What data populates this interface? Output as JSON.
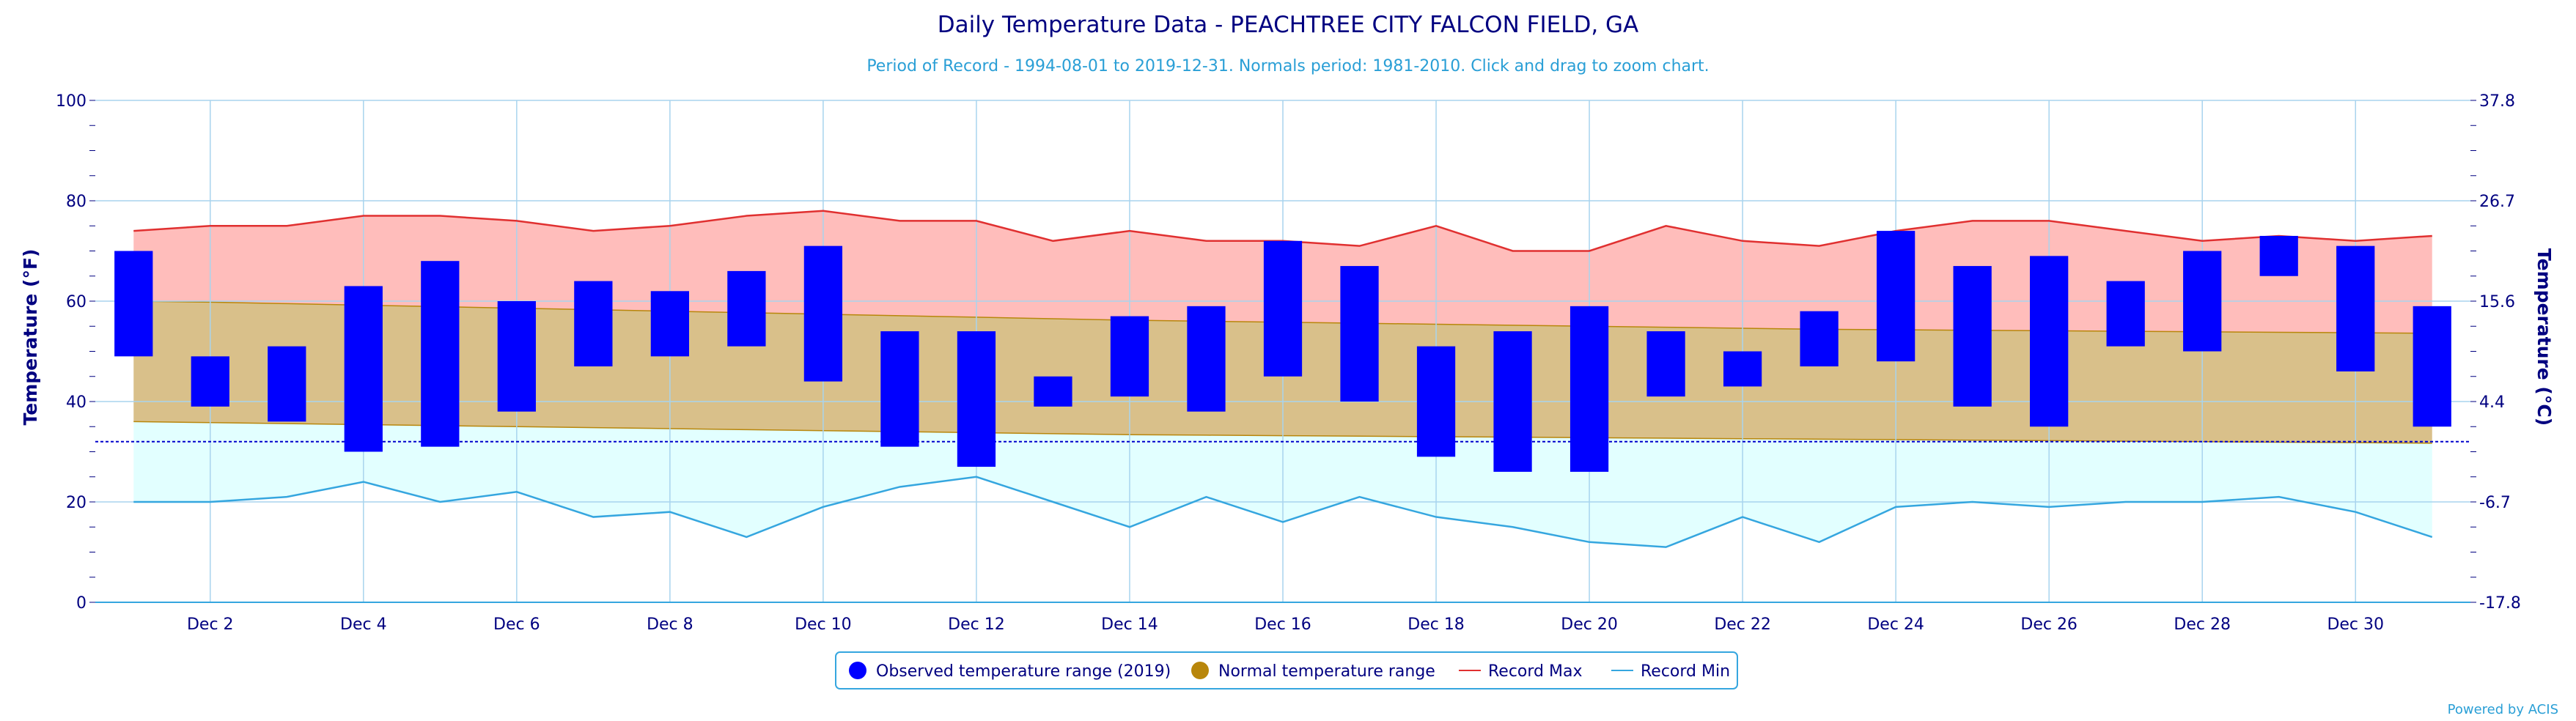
{
  "header": {
    "title": "Daily Temperature Data - PEACHTREE CITY FALCON FIELD, GA",
    "subtitle": "Period of Record - 1994-08-01 to 2019-12-31. Normals period: 1981-2010. Click and drag to zoom chart."
  },
  "credit": "Powered by ACIS",
  "colors": {
    "observed": "#0000ff",
    "normal": "#b8860b",
    "normal_fill": "#d9c08a",
    "record_max_line": "#e03030",
    "record_max_fill": "#ffbdbb",
    "record_min_line": "#35a6df",
    "record_min_fill": "#e2ffff",
    "text": "#000080",
    "grid": "#a8d4ee"
  },
  "legend": {
    "observed": "Observed temperature range (2019)",
    "normal": "Normal temperature range",
    "record_max": "Record Max",
    "record_min": "Record Min"
  },
  "chart_data": {
    "type": "bar",
    "title": "Daily Temperature Data - PEACHTREE CITY FALCON FIELD, GA",
    "ylabel_left": "Temperature (°F)",
    "ylabel_right": "Temperature (°C)",
    "ylim": [
      0,
      100
    ],
    "yticks_left": [
      "0",
      "20",
      "40",
      "60",
      "80",
      "100"
    ],
    "yticks_right": [
      "-17.8",
      "-6.7",
      "4.4",
      "15.6",
      "26.7",
      "37.8"
    ],
    "xlim": [
      0.5,
      31.5
    ],
    "x_ticks": [
      {
        "day": 2,
        "label": "Dec 2"
      },
      {
        "day": 4,
        "label": "Dec 4"
      },
      {
        "day": 6,
        "label": "Dec 6"
      },
      {
        "day": 8,
        "label": "Dec 8"
      },
      {
        "day": 10,
        "label": "Dec 10"
      },
      {
        "day": 12,
        "label": "Dec 12"
      },
      {
        "day": 14,
        "label": "Dec 14"
      },
      {
        "day": 16,
        "label": "Dec 16"
      },
      {
        "day": 18,
        "label": "Dec 18"
      },
      {
        "day": 20,
        "label": "Dec 20"
      },
      {
        "day": 22,
        "label": "Dec 22"
      },
      {
        "day": 24,
        "label": "Dec 24"
      },
      {
        "day": 26,
        "label": "Dec 26"
      },
      {
        "day": 28,
        "label": "Dec 28"
      },
      {
        "day": 30,
        "label": "Dec 30"
      }
    ],
    "freezing_line": 32,
    "days": [
      1,
      2,
      3,
      4,
      5,
      6,
      7,
      8,
      9,
      10,
      11,
      12,
      13,
      14,
      15,
      16,
      17,
      18,
      19,
      20,
      21,
      22,
      23,
      24,
      25,
      26,
      27,
      28,
      29,
      30,
      31
    ],
    "series": [
      {
        "name": "Observed temperature range (2019)",
        "type": "range",
        "low": [
          49,
          39,
          36,
          30,
          31,
          38,
          47,
          49,
          51,
          44,
          31,
          27,
          39,
          41,
          38,
          45,
          40,
          29,
          26,
          26,
          41,
          43,
          47,
          48,
          39,
          35,
          51,
          50,
          65,
          46,
          35
        ],
        "high": [
          70,
          49,
          51,
          63,
          68,
          60,
          64,
          62,
          66,
          71,
          54,
          54,
          45,
          57,
          59,
          72,
          67,
          51,
          54,
          59,
          54,
          50,
          58,
          74,
          67,
          69,
          64,
          70,
          73,
          71,
          59
        ]
      },
      {
        "name": "Normal temperature range",
        "type": "area-range",
        "low": [
          36,
          35.8,
          35.6,
          35.4,
          35.2,
          35,
          34.8,
          34.6,
          34.4,
          34.2,
          34,
          33.8,
          33.6,
          33.4,
          33.3,
          33.2,
          33.1,
          33,
          32.9,
          32.8,
          32.7,
          32.6,
          32.5,
          32.4,
          32.3,
          32.2,
          32.1,
          32,
          31.9,
          31.8,
          31.7
        ],
        "high": [
          60,
          59.8,
          59.5,
          59.2,
          58.9,
          58.6,
          58.3,
          58,
          57.7,
          57.4,
          57.1,
          56.8,
          56.5,
          56.2,
          56,
          55.8,
          55.6,
          55.4,
          55.2,
          55,
          54.8,
          54.6,
          54.4,
          54.3,
          54.2,
          54.1,
          54,
          53.9,
          53.8,
          53.7,
          53.6
        ]
      },
      {
        "name": "Record Max",
        "type": "line",
        "values": [
          74,
          75,
          75,
          77,
          77,
          76,
          74,
          75,
          77,
          78,
          76,
          76,
          72,
          74,
          72,
          72,
          71,
          75,
          70,
          70,
          75,
          72,
          71,
          74,
          76,
          76,
          74,
          72,
          73,
          72,
          73
        ]
      },
      {
        "name": "Record Min",
        "type": "line",
        "values": [
          20,
          20,
          21,
          24,
          20,
          22,
          17,
          18,
          13,
          19,
          23,
          25,
          20,
          15,
          21,
          16,
          21,
          17,
          15,
          12,
          11,
          17,
          12,
          19,
          20,
          19,
          20,
          20,
          21,
          18,
          13
        ]
      }
    ]
  }
}
